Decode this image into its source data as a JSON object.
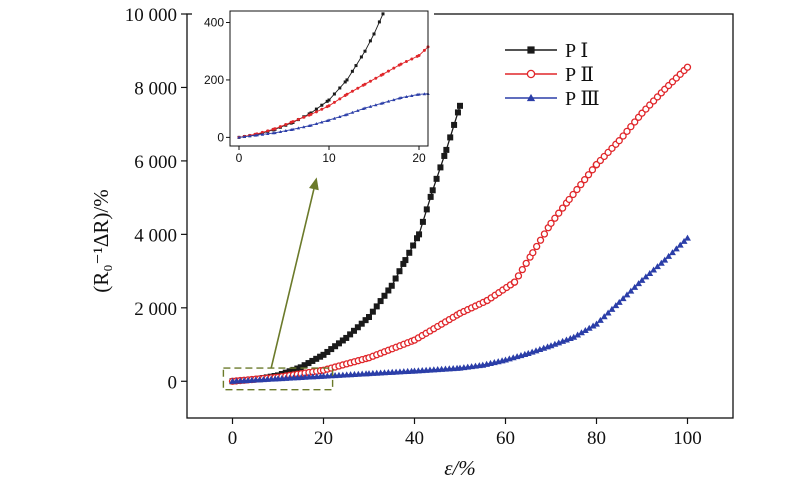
{
  "chart_data": [
    {
      "type": "line",
      "xlabel": "ε/%",
      "ylabel": "(R₀⁻¹ΔR)/%",
      "xlim": [
        -10,
        110
      ],
      "ylim": [
        -1000,
        10000
      ],
      "xticks": [
        0,
        20,
        40,
        60,
        80,
        100
      ],
      "yticks": [
        0,
        2000,
        4000,
        6000,
        8000,
        10000
      ],
      "xtick_labels": [
        "0",
        "20",
        "40",
        "60",
        "80",
        "100"
      ],
      "ytick_labels": [
        "0",
        "2 000",
        "4 000",
        "6 000",
        "8 000",
        "10 000"
      ],
      "legend": "top-right",
      "grid": false,
      "series": [
        {
          "name": "P Ⅰ",
          "color": "#1a1a1a",
          "marker": "square",
          "points": [
            [
              0,
              0
            ],
            [
              5,
              50
            ],
            [
              10,
              160
            ],
            [
              15,
              380
            ],
            [
              20,
              720
            ],
            [
              25,
              1180
            ],
            [
              30,
              1750
            ],
            [
              35,
              2600
            ],
            [
              38,
              3300
            ],
            [
              41,
              4000
            ],
            [
              44,
              5200
            ],
            [
              47,
              6300
            ],
            [
              50,
              7500
            ]
          ]
        },
        {
          "name": "P Ⅱ",
          "color": "#e0262a",
          "marker": "open-circle",
          "points": [
            [
              0,
              0
            ],
            [
              10,
              110
            ],
            [
              20,
              300
            ],
            [
              30,
              640
            ],
            [
              40,
              1120
            ],
            [
              50,
              1850
            ],
            [
              56,
              2200
            ],
            [
              62,
              2700
            ],
            [
              66,
              3500
            ],
            [
              70,
              4300
            ],
            [
              74,
              4950
            ],
            [
              80,
              5900
            ],
            [
              85,
              6550
            ],
            [
              90,
              7300
            ],
            [
              95,
              7950
            ],
            [
              100,
              8550
            ]
          ]
        },
        {
          "name": "P Ⅲ",
          "color": "#2b3ea8",
          "marker": "triangle",
          "points": [
            [
              0,
              0
            ],
            [
              10,
              70
            ],
            [
              20,
              140
            ],
            [
              30,
              210
            ],
            [
              40,
              280
            ],
            [
              50,
              360
            ],
            [
              55,
              440
            ],
            [
              60,
              580
            ],
            [
              65,
              760
            ],
            [
              70,
              970
            ],
            [
              75,
              1200
            ],
            [
              80,
              1560
            ],
            [
              85,
              2150
            ],
            [
              90,
              2750
            ],
            [
              95,
              3300
            ],
            [
              100,
              3900
            ]
          ]
        }
      ]
    },
    {
      "type": "line",
      "xlim": [
        -1,
        21
      ],
      "ylim": [
        -30,
        440
      ],
      "xticks": [
        0,
        10,
        20
      ],
      "yticks": [
        0,
        200,
        400
      ],
      "xtick_labels": [
        "0",
        "10",
        "20"
      ],
      "ytick_labels": [
        "0",
        "200",
        "400"
      ],
      "series": [
        {
          "name": "P Ⅰ",
          "color": "#1a1a1a",
          "points": [
            [
              0,
              0
            ],
            [
              2,
              10
            ],
            [
              4,
              28
            ],
            [
              6,
              52
            ],
            [
              8,
              85
            ],
            [
              10,
              130
            ],
            [
              12,
              200
            ],
            [
              13,
              250
            ],
            [
              14,
              300
            ],
            [
              15,
              360
            ],
            [
              16,
              430
            ]
          ]
        },
        {
          "name": "P Ⅱ",
          "color": "#e0262a",
          "points": [
            [
              0,
              0
            ],
            [
              2,
              12
            ],
            [
              4,
              30
            ],
            [
              6,
              55
            ],
            [
              8,
              80
            ],
            [
              10,
              110
            ],
            [
              12,
              150
            ],
            [
              14,
              185
            ],
            [
              16,
              220
            ],
            [
              18,
              255
            ],
            [
              20,
              285
            ],
            [
              21,
              315
            ]
          ]
        },
        {
          "name": "P Ⅲ",
          "color": "#2b3ea8",
          "points": [
            [
              0,
              0
            ],
            [
              2,
              8
            ],
            [
              4,
              16
            ],
            [
              6,
              28
            ],
            [
              8,
              42
            ],
            [
              10,
              60
            ],
            [
              12,
              80
            ],
            [
              14,
              102
            ],
            [
              16,
              120
            ],
            [
              18,
              138
            ],
            [
              20,
              150
            ],
            [
              21,
              152
            ]
          ]
        }
      ]
    }
  ]
}
